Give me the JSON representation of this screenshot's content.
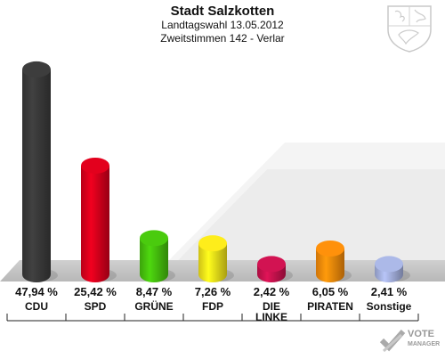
{
  "header": {
    "title": "Stadt Salzkotten",
    "subtitle1": "Landtagswahl 13.05.2012",
    "subtitle2": "Zweitstimmen 142 - Verlar"
  },
  "logo": {
    "line1": "VOTE",
    "line2": "MANAGER"
  },
  "chart_data": {
    "type": "bar",
    "title": "Stadt Salzkotten",
    "categories": [
      "CDU",
      "SPD",
      "GRÜNE",
      "FDP",
      "DIE LINKE",
      "PIRATEN",
      "Sonstige"
    ],
    "category_labels": [
      [
        "CDU"
      ],
      [
        "SPD"
      ],
      [
        "GRÜNE"
      ],
      [
        "FDP"
      ],
      [
        "DIE",
        "LINKE"
      ],
      [
        "PIRATEN"
      ],
      [
        "Sonstige"
      ]
    ],
    "values": [
      47.94,
      25.42,
      8.47,
      7.26,
      2.42,
      6.05,
      2.41
    ],
    "value_labels": [
      "47,94 %",
      "25,42 %",
      "8,47 %",
      "7,26 %",
      "2,42 %",
      "6,05 %",
      "2,41 %"
    ],
    "colors": [
      "#3a3a3a",
      "#d8001c",
      "#46c10d",
      "#f2e21a",
      "#c8124e",
      "#f58a0a",
      "#a4b0dd"
    ],
    "ylim": [
      0,
      50
    ],
    "grid": false
  }
}
